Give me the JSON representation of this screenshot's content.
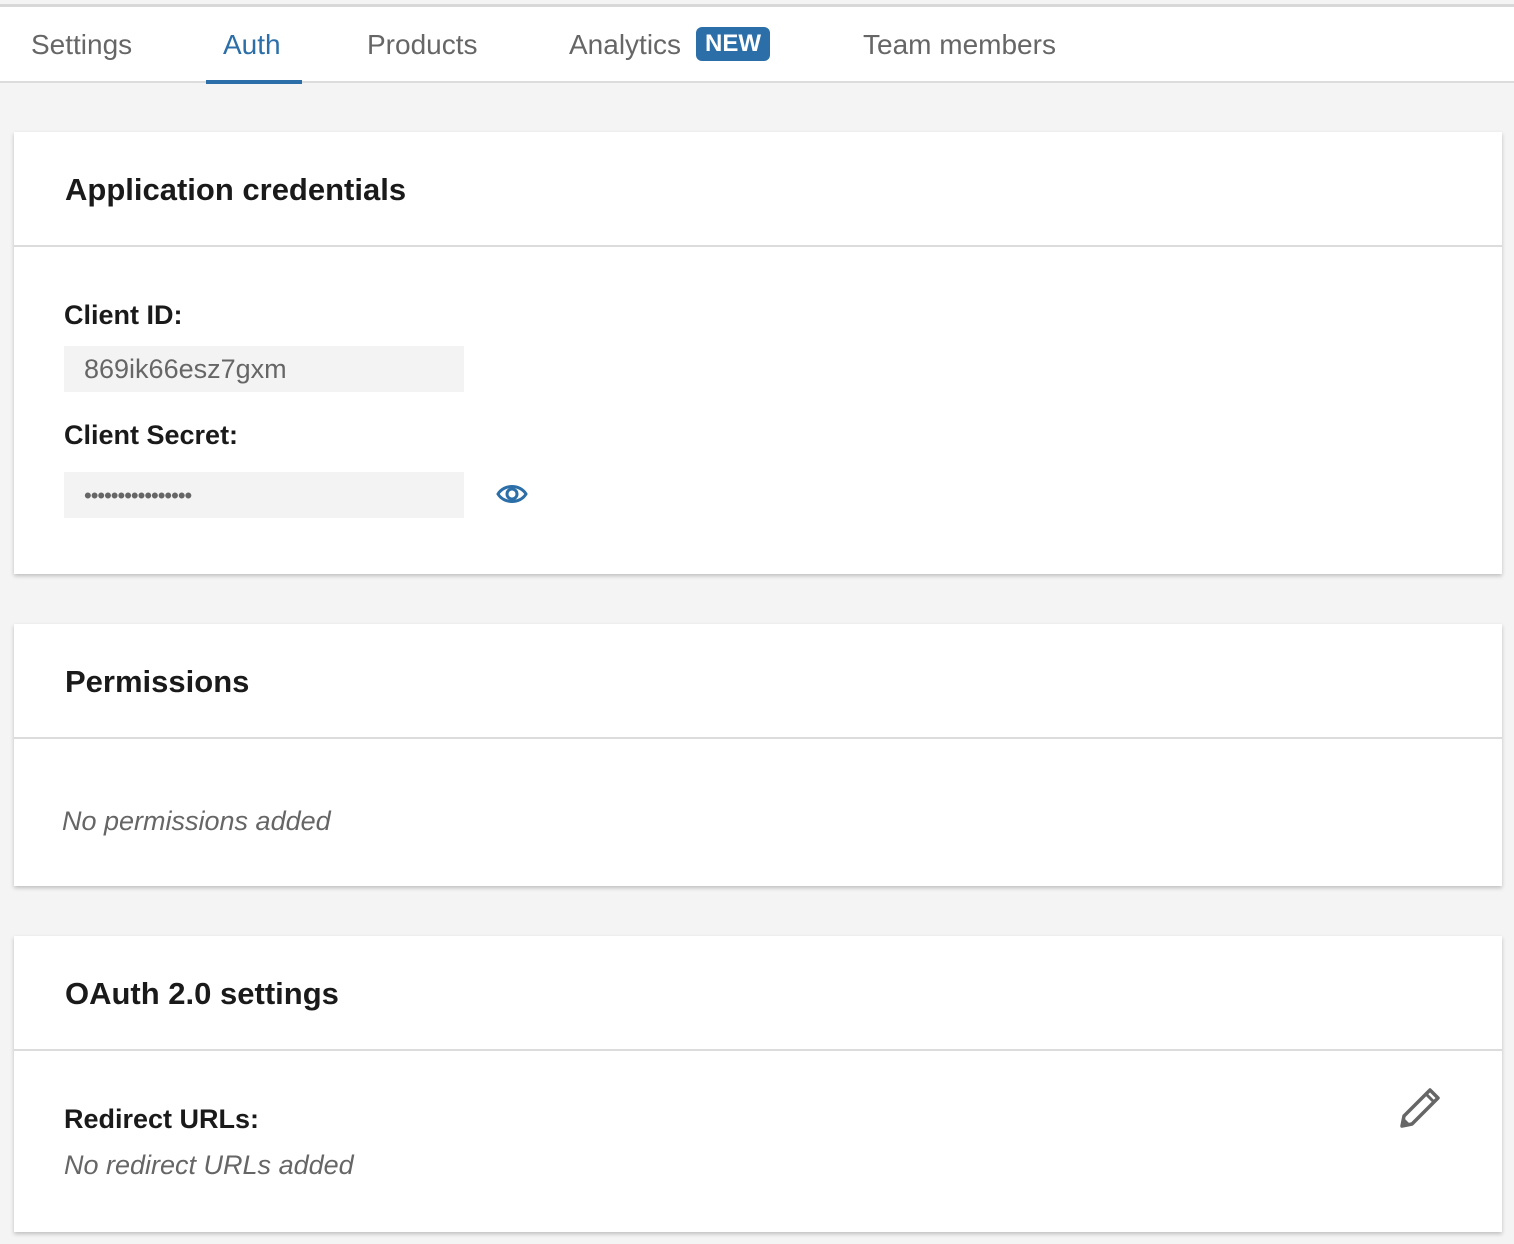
{
  "tabs": [
    {
      "label": "Settings",
      "active": false
    },
    {
      "label": "Auth",
      "active": true
    },
    {
      "label": "Products",
      "active": false
    },
    {
      "label": "Analytics",
      "active": false,
      "badge": "NEW"
    },
    {
      "label": "Team members",
      "active": false
    }
  ],
  "accent_color": "#2c6fa8",
  "credentials": {
    "title": "Application credentials",
    "client_id_label": "Client ID:",
    "client_id_value": "869ik66esz7gxm",
    "client_secret_label": "Client Secret:",
    "client_secret_value": "••••••••••••••••",
    "reveal_icon": "eye-icon"
  },
  "permissions": {
    "title": "Permissions",
    "empty_text": "No permissions added"
  },
  "oauth": {
    "title": "OAuth 2.0 settings",
    "redirect_label": "Redirect URLs:",
    "redirect_empty": "No redirect URLs added",
    "edit_icon": "pencil-icon"
  }
}
